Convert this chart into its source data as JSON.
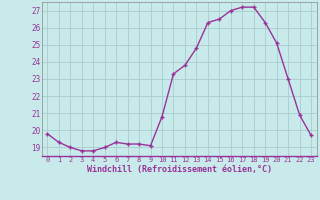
{
  "x": [
    0,
    1,
    2,
    3,
    4,
    5,
    6,
    7,
    8,
    9,
    10,
    11,
    12,
    13,
    14,
    15,
    16,
    17,
    18,
    19,
    20,
    21,
    22,
    23
  ],
  "y": [
    19.8,
    19.3,
    19.0,
    18.8,
    18.8,
    19.0,
    19.3,
    19.2,
    19.2,
    19.1,
    20.8,
    23.3,
    23.8,
    24.8,
    26.3,
    26.5,
    27.0,
    27.2,
    27.2,
    26.3,
    25.1,
    23.0,
    20.9,
    19.7
  ],
  "line_color": "#993399",
  "marker_color": "#993399",
  "bg_color": "#c8eaea",
  "grid_color": "#aacccc",
  "xlabel": "Windchill (Refroidissement éolien,°C)",
  "ylabel": "",
  "title": "",
  "xlim": [
    -0.5,
    23.5
  ],
  "ylim": [
    18.5,
    27.5
  ],
  "yticks": [
    19,
    20,
    21,
    22,
    23,
    24,
    25,
    26,
    27
  ],
  "xticks": [
    0,
    1,
    2,
    3,
    4,
    5,
    6,
    7,
    8,
    9,
    10,
    11,
    12,
    13,
    14,
    15,
    16,
    17,
    18,
    19,
    20,
    21,
    22,
    23
  ],
  "xlabel_color": "#993399",
  "tick_color": "#993399",
  "line_width": 1.0,
  "marker_size": 3.0,
  "spine_color": "#888888"
}
